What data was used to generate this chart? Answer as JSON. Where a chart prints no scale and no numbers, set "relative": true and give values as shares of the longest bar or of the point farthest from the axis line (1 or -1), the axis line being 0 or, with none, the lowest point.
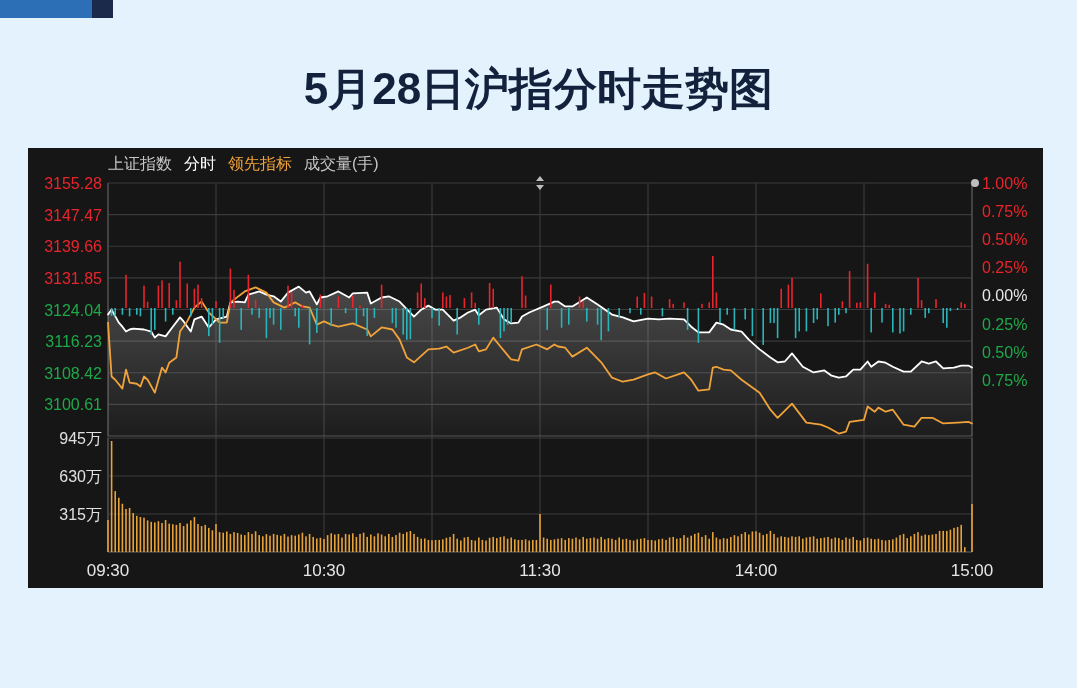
{
  "chart_data": [
    {
      "type": "line",
      "title": "5月28日沪指分时走势图",
      "subtitle": "上证指数",
      "annotations": [
        "成交量(手)"
      ],
      "grid": true,
      "tick_labels": "y",
      "categories": [
        "09:30",
        null,
        null,
        null,
        null,
        null,
        null,
        null,
        null,
        null,
        null,
        null,
        null,
        null,
        null,
        null,
        null,
        null,
        null,
        null,
        null,
        null,
        null,
        null,
        null,
        null,
        null,
        null,
        null,
        null,
        null,
        null,
        null,
        null,
        null,
        null,
        null,
        null,
        null,
        null,
        null,
        null,
        null,
        null,
        null,
        null,
        null,
        null,
        null,
        null,
        null,
        null,
        null,
        null,
        null,
        null,
        null,
        null,
        null,
        null,
        "10:30",
        null,
        null,
        null,
        null,
        null,
        null,
        null,
        null,
        null,
        null,
        null,
        null,
        null,
        null,
        null,
        null,
        null,
        null,
        null,
        null,
        null,
        null,
        null,
        null,
        null,
        null,
        null,
        null,
        null,
        null,
        null,
        null,
        null,
        null,
        null,
        null,
        null,
        null,
        null,
        null,
        null,
        null,
        null,
        null,
        null,
        null,
        null,
        null,
        null,
        null,
        null,
        null,
        null,
        null,
        null,
        null,
        null,
        null,
        null,
        "11:30",
        null,
        null,
        null,
        null,
        null,
        null,
        null,
        null,
        null,
        null,
        null,
        null,
        null,
        null,
        null,
        null,
        null,
        null,
        null,
        null,
        null,
        null,
        null,
        null,
        null,
        null,
        null,
        null,
        null,
        null,
        null,
        null,
        null,
        null,
        null,
        null,
        null,
        null,
        null,
        null,
        null,
        null,
        null,
        null,
        null,
        null,
        null,
        null,
        null,
        null,
        null,
        null,
        null,
        null,
        null,
        null,
        null,
        null,
        null,
        "14:00",
        null,
        null,
        null,
        null,
        null,
        null,
        null,
        null,
        null,
        null,
        null,
        null,
        null,
        null,
        null,
        null,
        null,
        null,
        null,
        null,
        null,
        null,
        null,
        null,
        null,
        null,
        null,
        null,
        null,
        null,
        null,
        null,
        null,
        null,
        null,
        null,
        null,
        null,
        null,
        null,
        null,
        null,
        null,
        null,
        null,
        null,
        null,
        null,
        null,
        null,
        null,
        null,
        null,
        null,
        null,
        null,
        null,
        null,
        null,
        "15:00"
      ],
      "ylim": [
        3092.8,
        3155.28
      ],
      "yticks": [
        3100.61,
        3108.42,
        3116.23,
        3124.04,
        3131.85,
        3139.66,
        3147.47,
        3155.28
      ],
      "y2lim": [
        -1.25,
        1.0
      ],
      "y2ticks": [
        {
          "value": -0.75,
          "label": "0.75%"
        },
        {
          "value": -0.5,
          "label": "0.50%"
        },
        {
          "value": -0.25,
          "label": "0.25%"
        },
        {
          "value": 0,
          "label": "0.00%"
        },
        {
          "value": 0.25,
          "label": "0.25%"
        },
        {
          "value": 0.5,
          "label": "0.50%"
        },
        {
          "value": 0.75,
          "label": "0.75%"
        },
        {
          "value": 1.0,
          "label": "1.00%"
        }
      ],
      "series": [
        {
          "name": "分时",
          "type": "area",
          "color": "#ffffff",
          "values": [
            3122.8,
            3124.0,
            null,
            3120.8,
            3119.8,
            3118.6,
            3119.1,
            3119.3,
            null,
            null,
            3119.1,
            null,
            3118.6,
            3117.1,
            3117.9,
            null,
            3117.4,
            null,
            3119.8,
            null,
            3122.1,
            3121.1,
            null,
            3118.6,
            3121.6,
            null,
            3122.3,
            null,
            3119.6,
            null,
            3121.6,
            null,
            null,
            3122.3,
            3125.8,
            null,
            3126.0,
            null,
            3125.8,
            3127.7,
            null,
            null,
            3128.5,
            null,
            3127.7,
            null,
            3127.3,
            null,
            3126.0,
            null,
            3128.2,
            null,
            null,
            3129.7,
            null,
            3128.2,
            3128.5,
            null,
            3125.3,
            3127.0,
            null,
            3127.3,
            null,
            null,
            3128.5,
            null,
            null,
            3127.0,
            3128.0,
            null,
            null,
            null,
            3128.2,
            3125.5,
            null,
            null,
            3127.0,
            null,
            3127.3,
            null,
            null,
            3126.0,
            null,
            null,
            null,
            3122.3,
            null,
            3124.0,
            null,
            3125.0,
            null,
            3124.0,
            null,
            3124.0,
            null,
            null,
            3121.3,
            null,
            3122.1,
            null,
            3123.3,
            null,
            3124.0,
            3122.6,
            null,
            3124.0,
            null,
            null,
            3124.5,
            null,
            3121.6,
            null,
            3120.6,
            null,
            3120.8,
            3122.3,
            null,
            3123.3,
            null,
            null,
            null,
            3124.8,
            null,
            null,
            3126.0,
            3126.0,
            null,
            3124.8,
            null,
            3124.8,
            null,
            null,
            null,
            3127.0,
            null,
            null,
            3125.3,
            null,
            null,
            null,
            3122.8,
            null,
            null,
            3122.1,
            null,
            null,
            3121.1,
            null,
            null,
            null,
            3121.8,
            null,
            null,
            3121.6,
            null,
            null,
            3121.8,
            null,
            null,
            null,
            3121.6,
            null,
            3119.8,
            null,
            3118.4,
            null,
            null,
            3118.4,
            null,
            3120.8,
            null,
            3120.3,
            null,
            3119.1,
            null,
            null,
            3118.6,
            null,
            3116.6,
            null,
            null,
            3114.2,
            null,
            null,
            3112.2,
            null,
            3111.0,
            null,
            3111.2,
            null,
            3113.2,
            null,
            null,
            3109.9,
            null,
            null,
            3108.5,
            null,
            null,
            3109.0,
            null,
            3107.7,
            null,
            3107.2,
            null,
            3107.5,
            null,
            3109.2,
            null,
            3109.2,
            null,
            3111.2,
            3109.9,
            null,
            3111.2,
            null,
            3110.9,
            null,
            3109.9,
            null,
            null,
            3108.7,
            null,
            3108.7,
            null,
            null,
            3111.2,
            null,
            3110.7,
            null,
            3111.2,
            null,
            3109.5,
            null,
            null,
            3109.7,
            null,
            3110.2,
            null,
            3110.2,
            3109.7
          ]
        },
        {
          "name": "领先指标",
          "color": "#f0a33a",
          "values": [
            3120.8,
            3107.5,
            3106.7,
            null,
            3104.5,
            3109.2,
            3106.0,
            null,
            3105.7,
            3105.0,
            3107.5,
            3106.7,
            null,
            3103.5,
            null,
            3109.7,
            3108.5,
            3110.9,
            null,
            3112.2,
            3118.6,
            null,
            3121.1,
            null,
            3124.5,
            null,
            3126.0,
            null,
            3123.3,
            null,
            null,
            3120.8,
            null,
            3120.8,
            3125.8,
            null,
            null,
            null,
            3128.5,
            null,
            null,
            3129.5,
            null,
            null,
            3128.2,
            null,
            3125.8,
            null,
            null,
            3124.5,
            null,
            null,
            3125.8,
            null,
            3124.8,
            null,
            3124.5,
            null,
            3120.3,
            null,
            3121.1,
            null,
            3120.3,
            null,
            3119.8,
            null,
            null,
            null,
            3120.6,
            null,
            null,
            null,
            3119.1,
            3117.4,
            null,
            null,
            3119.6,
            null,
            null,
            3119.1,
            null,
            3116.6,
            null,
            3112.2,
            null,
            3111.0,
            null,
            null,
            null,
            3114.2,
            null,
            null,
            3114.4,
            null,
            3114.9,
            null,
            3113.4,
            null,
            null,
            null,
            3114.6,
            null,
            3115.4,
            3113.7,
            null,
            3114.2,
            null,
            3117.1,
            null,
            3114.9,
            null,
            null,
            3111.7,
            null,
            3111.4,
            3114.2,
            null,
            null,
            null,
            3115.4,
            null,
            null,
            3114.2,
            null,
            3115.4,
            3114.9,
            null,
            3114.6,
            null,
            3112.4,
            null,
            null,
            null,
            3114.6,
            null,
            null,
            null,
            3111.0,
            null,
            null,
            3107.2,
            null,
            null,
            3106.2,
            null,
            null,
            3106.7,
            null,
            null,
            null,
            3108.0,
            null,
            3108.5,
            null,
            null,
            3107.0,
            null,
            null,
            null,
            null,
            3108.5,
            null,
            3106.7,
            null,
            3104.0,
            null,
            null,
            3104.3,
            3109.7,
            3109.9,
            null,
            3109.2,
            null,
            3109.0,
            null,
            null,
            3106.7,
            null,
            null,
            null,
            null,
            3103.5,
            null,
            null,
            3099.3,
            null,
            3097.3,
            null,
            null,
            null,
            3100.8,
            null,
            null,
            null,
            3096.1,
            null,
            null,
            null,
            3095.6,
            null,
            3094.9,
            null,
            null,
            3093.4,
            null,
            3093.9,
            3096.3,
            null,
            null,
            null,
            3096.8,
            3100.1,
            null,
            3098.8,
            3099.8,
            null,
            3098.8,
            null,
            3099.3,
            null,
            null,
            3095.6,
            null,
            null,
            3095.1,
            null,
            3097.3,
            null,
            null,
            3097.3,
            null,
            null,
            3095.9,
            null,
            null,
            null,
            3096.1,
            null,
            null,
            3096.3,
            3095.9
          ]
        }
      ]
    },
    {
      "type": "bar",
      "relative": true,
      "stacked": true,
      "tick_labels": false,
      "categories": [
        "09:30",
        null,
        null,
        null,
        null,
        null,
        null,
        null,
        null,
        null,
        null,
        null,
        null,
        null,
        null,
        null,
        null,
        null,
        null,
        null,
        null,
        null,
        null,
        null,
        null,
        null,
        null,
        null,
        null,
        null,
        null,
        null,
        null,
        null,
        null,
        null,
        null,
        null,
        null,
        null,
        null,
        null,
        null,
        null,
        null,
        null,
        null,
        null,
        null,
        null,
        null,
        null,
        null,
        null,
        null,
        null,
        null,
        null,
        null,
        null,
        "10:30",
        null,
        null,
        null,
        null,
        null,
        null,
        null,
        null,
        null,
        null,
        null,
        null,
        null,
        null,
        null,
        null,
        null,
        null,
        null,
        null,
        null,
        null,
        null,
        null,
        null,
        null,
        null,
        null,
        null,
        null,
        null,
        null,
        null,
        null,
        null,
        null,
        null,
        null,
        null,
        null,
        null,
        null,
        null,
        null,
        null,
        null,
        null,
        null,
        null,
        null,
        null,
        null,
        null,
        null,
        null,
        null,
        null,
        null,
        null,
        "11:30",
        null,
        null,
        null,
        null,
        null,
        null,
        null,
        null,
        null,
        null,
        null,
        null,
        null,
        null,
        null,
        null,
        null,
        null,
        null,
        null,
        null,
        null,
        null,
        null,
        null,
        null,
        null,
        null,
        null,
        null,
        null,
        null,
        null,
        null,
        null,
        null,
        null,
        null,
        null,
        null,
        null,
        null,
        null,
        null,
        null,
        null,
        null,
        null,
        null,
        null,
        null,
        null,
        null,
        null,
        null,
        null,
        null,
        null,
        null,
        "14:00",
        null,
        null,
        null,
        null,
        null,
        null,
        null,
        null,
        null,
        null,
        null,
        null,
        null,
        null,
        null,
        null,
        null,
        null,
        null,
        null,
        null,
        null,
        null,
        null,
        null,
        null,
        null,
        null,
        null,
        null,
        null,
        null,
        null,
        null,
        null,
        null,
        null,
        null,
        null,
        null,
        null,
        null,
        null,
        null,
        null,
        null,
        null,
        null,
        null,
        null,
        null,
        null,
        null,
        null,
        null,
        null,
        null,
        null,
        null,
        "15:00"
      ],
      "series": [
        {
          "color": "#e8242c",
          "values": [
            null,
            null,
            null,
            null,
            null,
            0.64,
            null,
            null,
            null,
            null,
            0.43,
            0.12,
            null,
            null,
            0.43,
            0.53,
            null,
            0.48,
            null,
            0.15,
            0.89,
            null,
            0.47,
            null,
            0.37,
            0.45,
            0.19,
            null,
            null,
            null,
            0.13,
            null,
            null,
            null,
            0.76,
            0.35,
            null,
            null,
            null,
            0.64,
            null,
            0.16,
            null,
            null,
            null,
            null,
            null,
            null,
            null,
            null,
            0.43,
            0.3,
            null,
            null,
            0.06,
            null,
            null,
            null,
            null,
            0.26,
            null,
            null,
            null,
            null,
            0.22,
            null,
            null,
            null,
            0.24,
            null,
            0.05,
            null,
            null,
            null,
            null,
            null,
            0.45,
            null,
            null,
            null,
            null,
            null,
            null,
            null,
            null,
            null,
            0.3,
            0.47,
            0.19,
            null,
            null,
            null,
            null,
            0.3,
            0.22,
            0.25,
            null,
            null,
            null,
            0.19,
            null,
            0.3,
            0.1,
            null,
            null,
            null,
            0.48,
            0.37,
            null,
            null,
            null,
            null,
            null,
            null,
            null,
            0.61,
            0.24,
            null,
            null,
            null,
            null,
            null,
            null,
            0.45,
            null,
            null,
            null,
            null,
            null,
            null,
            null,
            0.22,
            0.13,
            null,
            null,
            null,
            null,
            null,
            null,
            null,
            null,
            null,
            null,
            null,
            null,
            null,
            null,
            0.22,
            null,
            0.29,
            null,
            0.22,
            null,
            null,
            null,
            null,
            0.17,
            0.08,
            null,
            null,
            0.11,
            null,
            null,
            null,
            null,
            0.08,
            null,
            0.11,
            1,
            0.3,
            null,
            null,
            null,
            null,
            null,
            null,
            null,
            null,
            null,
            null,
            null,
            null,
            null,
            null,
            null,
            null,
            null,
            0.37,
            null,
            0.45,
            0.58,
            null,
            null,
            null,
            null,
            null,
            null,
            null,
            0.28,
            null,
            null,
            null,
            null,
            null,
            0.13,
            null,
            0.71,
            null,
            0.1,
            0.11,
            null,
            0.85,
            null,
            0.3,
            null,
            null,
            0.08,
            0.06,
            null,
            null,
            null,
            null,
            null,
            null,
            null,
            0.58,
            0.15,
            null,
            null,
            null,
            0.17,
            null,
            null,
            null,
            null,
            null,
            null,
            0.11,
            0.08,
            null,
            null
          ]
        },
        {
          "color": "#2ab3b8",
          "values": [
            null,
            -0.15,
            -0.16,
            null,
            -0.13,
            null,
            -0.16,
            null,
            -0.13,
            -0.16,
            null,
            null,
            -0.51,
            -0.42,
            null,
            null,
            -0.26,
            null,
            -0.13,
            null,
            null,
            null,
            null,
            -0.16,
            null,
            null,
            null,
            null,
            -0.54,
            -0.32,
            null,
            -0.67,
            -0.19,
            null,
            null,
            null,
            null,
            -0.42,
            null,
            null,
            -0.13,
            null,
            -0.19,
            null,
            -0.58,
            -0.19,
            -0.32,
            null,
            -0.42,
            null,
            null,
            null,
            -0.16,
            -0.38,
            null,
            null,
            -0.7,
            null,
            -0.48,
            null,
            null,
            null,
            -0.35,
            null,
            null,
            null,
            -0.1,
            null,
            null,
            -0.32,
            null,
            -0.16,
            -0.54,
            null,
            -0.19,
            null,
            null,
            null,
            null,
            -0.29,
            -0.38,
            null,
            -0.51,
            -0.61,
            -0.6,
            null,
            null,
            null,
            null,
            null,
            -0.19,
            null,
            -0.34,
            null,
            null,
            null,
            null,
            -0.51,
            null,
            null,
            null,
            null,
            null,
            -0.32,
            null,
            null,
            null,
            null,
            null,
            -0.58,
            -0.45,
            -0.32,
            -0.29,
            null,
            null,
            null,
            null,
            null,
            null,
            null,
            null,
            null,
            -0.42,
            null,
            null,
            null,
            -0.38,
            null,
            -0.32,
            null,
            null,
            null,
            null,
            -0.26,
            null,
            null,
            -0.32,
            -0.62,
            null,
            -0.45,
            null,
            null,
            -0.19,
            null,
            null,
            -0.1,
            null,
            null,
            -0.13,
            null,
            null,
            null,
            null,
            null,
            -0.16,
            null,
            null,
            null,
            null,
            null,
            null,
            -0.42,
            null,
            null,
            -0.67,
            null,
            null,
            null,
            null,
            null,
            -0.29,
            null,
            -0.13,
            null,
            -0.42,
            null,
            null,
            -0.22,
            null,
            -0.54,
            null,
            null,
            -0.71,
            null,
            -0.29,
            -0.29,
            -0.58,
            null,
            null,
            null,
            null,
            -0.58,
            -0.45,
            null,
            -0.45,
            null,
            -0.29,
            -0.22,
            null,
            null,
            -0.35,
            null,
            -0.28,
            -0.13,
            null,
            -0.1,
            null,
            null,
            null,
            null,
            null,
            null,
            -0.47,
            null,
            null,
            -0.28,
            null,
            null,
            -0.47,
            null,
            -0.49,
            -0.45,
            null,
            -0.13,
            null,
            null,
            null,
            -0.19,
            -0.1,
            null,
            null,
            null,
            -0.29,
            -0.38,
            -0.06,
            null,
            -0.04,
            null,
            null,
            null,
            null
          ]
        }
      ]
    },
    {
      "type": "bar",
      "color": "#e8a23a",
      "grid": "y",
      "categories": [
        "09:30",
        null,
        null,
        null,
        null,
        null,
        null,
        null,
        null,
        null,
        null,
        null,
        null,
        null,
        null,
        null,
        null,
        null,
        null,
        null,
        null,
        null,
        null,
        null,
        null,
        null,
        null,
        null,
        null,
        null,
        null,
        null,
        null,
        null,
        null,
        null,
        null,
        null,
        null,
        null,
        null,
        null,
        null,
        null,
        null,
        null,
        null,
        null,
        null,
        null,
        null,
        null,
        null,
        null,
        null,
        null,
        null,
        null,
        null,
        null,
        "10:30",
        null,
        null,
        null,
        null,
        null,
        null,
        null,
        null,
        null,
        null,
        null,
        null,
        null,
        null,
        null,
        null,
        null,
        null,
        null,
        null,
        null,
        null,
        null,
        null,
        null,
        null,
        null,
        null,
        null,
        null,
        null,
        null,
        null,
        null,
        null,
        null,
        null,
        null,
        null,
        null,
        null,
        null,
        null,
        null,
        null,
        null,
        null,
        null,
        null,
        null,
        null,
        null,
        null,
        null,
        null,
        null,
        null,
        null,
        null,
        "11:30",
        null,
        null,
        null,
        null,
        null,
        null,
        null,
        null,
        null,
        null,
        null,
        null,
        null,
        null,
        null,
        null,
        null,
        null,
        null,
        null,
        null,
        null,
        null,
        null,
        null,
        null,
        null,
        null,
        null,
        null,
        null,
        null,
        null,
        null,
        null,
        null,
        null,
        null,
        null,
        null,
        null,
        null,
        null,
        null,
        null,
        null,
        null,
        null,
        null,
        null,
        null,
        null,
        null,
        null,
        null,
        null,
        null,
        null,
        null,
        "14:00",
        null,
        null,
        null,
        null,
        null,
        null,
        null,
        null,
        null,
        null,
        null,
        null,
        null,
        null,
        null,
        null,
        null,
        null,
        null,
        null,
        null,
        null,
        null,
        null,
        null,
        null,
        null,
        null,
        null,
        null,
        null,
        null,
        null,
        null,
        null,
        null,
        null,
        null,
        null,
        null,
        null,
        null,
        null,
        null,
        null,
        null,
        null,
        null,
        null,
        null,
        null,
        null,
        null,
        null,
        null,
        null,
        null,
        null,
        null,
        "15:00"
      ],
      "ylim": [
        0,
        945
      ],
      "yticks": [
        {
          "value": 0,
          "label": null
        },
        {
          "value": 315,
          "label": "315万"
        },
        {
          "value": 630,
          "label": "630万"
        },
        {
          "value": 945,
          "label": "945万"
        }
      ],
      "values": [
        265,
        920,
        505,
        450,
        400,
        357,
        365,
        323,
        300,
        290,
        285,
        262,
        250,
        245,
        255,
        240,
        265,
        235,
        230,
        225,
        240,
        215,
        235,
        262,
        290,
        232,
        215,
        225,
        200,
        180,
        232,
        165,
        160,
        170,
        150,
        165,
        158,
        145,
        140,
        165,
        150,
        172,
        140,
        130,
        148,
        135,
        150,
        142,
        135,
        150,
        128,
        140,
        135,
        145,
        160,
        130,
        150,
        125,
        112,
        118,
        108,
        140,
        155,
        145,
        150,
        120,
        150,
        145,
        155,
        125,
        150,
        160,
        125,
        145,
        130,
        155,
        145,
        130,
        150,
        125,
        140,
        160,
        150,
        165,
        174,
        150,
        125,
        110,
        112,
        100,
        98,
        100,
        100,
        105,
        118,
        125,
        150,
        110,
        95,
        120,
        125,
        100,
        95,
        120,
        100,
        95,
        118,
        125,
        115,
        125,
        130,
        110,
        120,
        105,
        100,
        100,
        105,
        95,
        100,
        100,
        315,
        120,
        110,
        100,
        105,
        110,
        115,
        100,
        115,
        110,
        120,
        105,
        125,
        110,
        115,
        120,
        110,
        125,
        105,
        115,
        110,
        100,
        120,
        105,
        110,
        100,
        95,
        105,
        110,
        115,
        100,
        100,
        95,
        105,
        110,
        100,
        120,
        125,
        110,
        115,
        140,
        120,
        135,
        150,
        160,
        125,
        140,
        110,
        165,
        120,
        105,
        115,
        110,
        125,
        140,
        130,
        150,
        165,
        145,
        170,
        172,
        160,
        140,
        150,
        175,
        150,
        120,
        130,
        125,
        120,
        130,
        125,
        130,
        110,
        120,
        125,
        130,
        110,
        115,
        120,
        125,
        110,
        120,
        115,
        100,
        120,
        110,
        125,
        100,
        95,
        115,
        120,
        110,
        105,
        110,
        100,
        95,
        100,
        105,
        120,
        140,
        150,
        115,
        130,
        150,
        165,
        135,
        145,
        140,
        145,
        150,
        175,
        175,
        175,
        185,
        200,
        207,
        225,
        40,
        null,
        398
      ]
    }
  ]
}
